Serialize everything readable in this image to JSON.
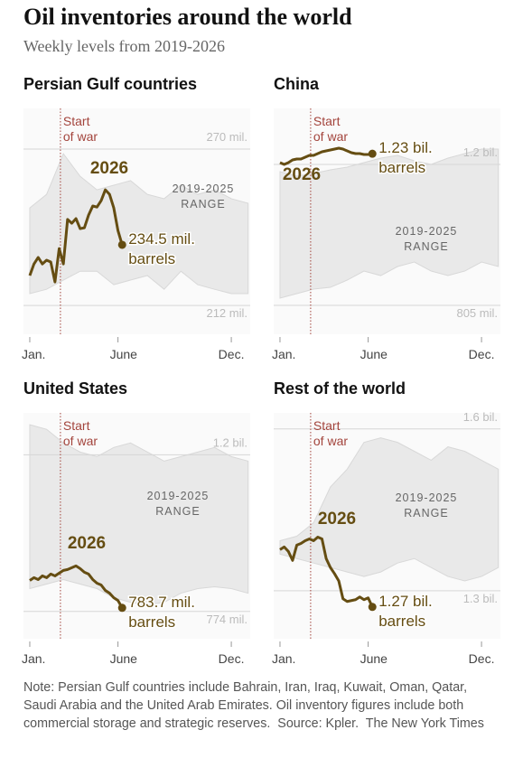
{
  "title": "Oil inventories around the world",
  "subtitle": "Weekly levels from 2019-2026",
  "note": "Note:  Persian Gulf countries include Bahrain, Iran, Iraq, Kuwait, Oman, Qatar, Saudi Arabia and the United Arab Emirates. Oil inventory figures include both commercial storage and strategic reserves.",
  "source": "Source: Kpler.",
  "credit": "The New York Times",
  "chart_data": [
    {
      "type": "line",
      "title": "Persian Gulf countries",
      "xlim": [
        -1.5,
        52.5
      ],
      "xticks": [
        {
          "value": 0,
          "label": "Jan."
        },
        {
          "value": 21,
          "label": "June"
        },
        {
          "value": 48,
          "label": "Dec."
        }
      ],
      "ylim": [
        201.3,
        285.1
      ],
      "yticks": [
        {
          "value": 212,
          "label": "212 mil."
        },
        {
          "value": 270,
          "label": "270 mil."
        }
      ],
      "grid": true,
      "annotation": {
        "text": [
          "Start",
          "of war"
        ],
        "x": 7.3
      },
      "range": {
        "label": [
          "2019-2025",
          "RANGE"
        ],
        "x": [
          0,
          4,
          8,
          12,
          16,
          20,
          24,
          28,
          32,
          36,
          40,
          44,
          48,
          52
        ],
        "upper": [
          248.2,
          253.2,
          268.3,
          259.9,
          254.9,
          256.6,
          258.3,
          253.2,
          251.6,
          256.6,
          253.2,
          254.9,
          251.6,
          249.9
        ],
        "lower": [
          216.4,
          218.0,
          221.4,
          224.7,
          224.7,
          219.7,
          221.4,
          223.1,
          218.0,
          224.7,
          219.7,
          218.0,
          216.4,
          216.4
        ]
      },
      "series": [
        {
          "name": "2026",
          "color": "#654d12",
          "x": [
            0,
            1,
            2,
            3,
            4,
            5,
            6,
            7,
            8,
            9,
            10,
            11,
            12,
            13,
            14,
            15,
            16,
            17,
            18,
            19,
            20,
            21,
            22
          ],
          "values": [
            223.1,
            227.4,
            229.8,
            227.4,
            228.8,
            228.1,
            220.7,
            233.1,
            227.4,
            243.9,
            242.5,
            244.2,
            240.5,
            240.8,
            245.5,
            248.9,
            248.5,
            250.9,
            254.9,
            253.2,
            248.2,
            239.8,
            234.5
          ],
          "end_label": [
            "234.5 mil.",
            "barrels"
          ]
        }
      ]
    },
    {
      "type": "line",
      "title": "China",
      "xlim": [
        -1.5,
        52.5
      ],
      "xticks": [
        {
          "value": 0,
          "label": "Jan."
        },
        {
          "value": 21,
          "label": "June"
        },
        {
          "value": 48,
          "label": "Dec."
        }
      ],
      "ylim": [
        724,
        1357
      ],
      "yticks": [
        {
          "value": 805,
          "label": "805 mil."
        },
        {
          "value": 1200,
          "label": "1.2 bil."
        }
      ],
      "grid": true,
      "annotation": {
        "text": [
          "Start",
          "of war"
        ],
        "x": 7.3
      },
      "range": {
        "label": [
          "2019-2025",
          "RANGE"
        ],
        "x": [
          0,
          4,
          8,
          12,
          16,
          20,
          24,
          28,
          32,
          36,
          40,
          44,
          48,
          52
        ],
        "upper": [
          1179.7,
          1167.1,
          1174.7,
          1184.8,
          1192.4,
          1205.1,
          1217.7,
          1225.3,
          1210.1,
          1200,
          1217.7,
          1230.4,
          1243.0,
          1243.0
        ],
        "lower": [
          825.2,
          837.9,
          850.5,
          855.6,
          875.9,
          901.2,
          888.5,
          913.9,
          926.5,
          901.2,
          888.5,
          901.2,
          926.5,
          913.9
        ]
      },
      "series": [
        {
          "name": "2026",
          "color": "#654d12",
          "x": [
            0,
            1,
            2,
            3,
            4,
            5,
            6,
            7,
            8,
            9,
            10,
            11,
            12,
            13,
            14,
            15,
            16,
            17,
            18,
            19,
            20,
            21,
            22
          ],
          "values": [
            1205.1,
            1200,
            1205.1,
            1212.7,
            1215.2,
            1215.2,
            1220.3,
            1225.3,
            1225.3,
            1230.4,
            1235.5,
            1238.0,
            1240.5,
            1243.0,
            1245.6,
            1243.0,
            1238.0,
            1232.9,
            1230.4,
            1230.4,
            1227.9,
            1227.9,
            1230
          ],
          "end_label": [
            "1.23 bil.",
            "barrels"
          ]
        }
      ]
    },
    {
      "type": "line",
      "title": "United States",
      "xlim": [
        -1.5,
        52.5
      ],
      "xticks": [
        {
          "value": 0,
          "label": "Jan."
        },
        {
          "value": 21,
          "label": "June"
        },
        {
          "value": 48,
          "label": "Dec."
        }
      ],
      "ylim": [
        699.7,
        1313.9
      ],
      "yticks": [
        {
          "value": 774,
          "label": "774 mil."
        },
        {
          "value": 1200,
          "label": "1.2 bil."
        }
      ],
      "grid": true,
      "annotation": {
        "text": [
          "Start",
          "of war"
        ],
        "x": 7.3
      },
      "range": {
        "label": [
          "2019-2025",
          "RANGE"
        ],
        "x": [
          0,
          4,
          8,
          12,
          16,
          20,
          24,
          28,
          32,
          36,
          40,
          44,
          48,
          52
        ],
        "upper": [
          1281.7,
          1269.3,
          1232.2,
          1207.4,
          1195.0,
          1219.8,
          1232.2,
          1207.4,
          1182.7,
          1195.0,
          1207.4,
          1219.8,
          1195.0,
          1182.7
        ],
        "lower": [
          836.0,
          848.3,
          860.7,
          848.3,
          836.0,
          811.2,
          798.8,
          791.4,
          798.8,
          823.6,
          836.0,
          840.9,
          836.0,
          823.6
        ]
      },
      "series": [
        {
          "name": "2026",
          "color": "#654d12",
          "x": [
            0,
            1,
            2,
            3,
            4,
            5,
            6,
            7,
            8,
            9,
            10,
            11,
            12,
            13,
            14,
            15,
            16,
            17,
            18,
            19,
            20,
            21,
            22
          ],
          "values": [
            858.2,
            865.7,
            860.7,
            870.6,
            865.7,
            875.6,
            870.6,
            878.1,
            885.5,
            888.0,
            892.9,
            897.9,
            890.4,
            880.5,
            875.6,
            860.7,
            850.8,
            845.9,
            831.0,
            823.6,
            811.2,
            803.8,
            783.7
          ],
          "end_label": [
            "783.7 mil.",
            "barrels"
          ]
        }
      ]
    },
    {
      "type": "line",
      "title": "Rest of the world",
      "xlim": [
        -1.5,
        52.5
      ],
      "xticks": [
        {
          "value": 0,
          "label": "Jan."
        },
        {
          "value": 21,
          "label": "June"
        },
        {
          "value": 48,
          "label": "Dec."
        }
      ],
      "ylim": [
        1211,
        1629.8
      ],
      "yticks": [
        {
          "value": 1300,
          "label": "1.3 bil."
        },
        {
          "value": 1600,
          "label": "1.6 bil."
        }
      ],
      "grid": true,
      "annotation": {
        "text": [
          "Start",
          "of war"
        ],
        "x": 7.3
      },
      "range": {
        "label": [
          "2019-2025",
          "RANGE"
        ],
        "x": [
          0,
          4,
          8,
          12,
          16,
          20,
          24,
          28,
          32,
          36,
          40,
          44,
          48,
          52
        ],
        "upper": [
          1392.8,
          1401.1,
          1426.0,
          1492.3,
          1525.4,
          1575.1,
          1583.4,
          1575.1,
          1558.6,
          1542.0,
          1566.8,
          1558.6,
          1542.0,
          1525.4
        ],
        "lower": [
          1367.9,
          1359.7,
          1351.4,
          1343.1,
          1334.8,
          1326.5,
          1334.8,
          1351.4,
          1359.7,
          1343.1,
          1326.5,
          1318.2,
          1326.5,
          1343.1
        ]
      },
      "series": [
        {
          "name": "2026",
          "color": "#654d12",
          "x": [
            0,
            1,
            2,
            3,
            4,
            5,
            6,
            7,
            8,
            9,
            10,
            11,
            12,
            13,
            14,
            15,
            16,
            17,
            18,
            19,
            20,
            21,
            22
          ],
          "values": [
            1376.2,
            1381.2,
            1372.9,
            1356.3,
            1384.5,
            1387.8,
            1392.8,
            1396.1,
            1392.8,
            1399.4,
            1396.1,
            1359.7,
            1343.1,
            1331.5,
            1318.2,
            1285.1,
            1280.1,
            1281.8,
            1283.4,
            1288.4,
            1283.4,
            1286.7,
            1270
          ],
          "end_label": [
            "1.27 bil.",
            "barrels"
          ]
        }
      ]
    }
  ]
}
